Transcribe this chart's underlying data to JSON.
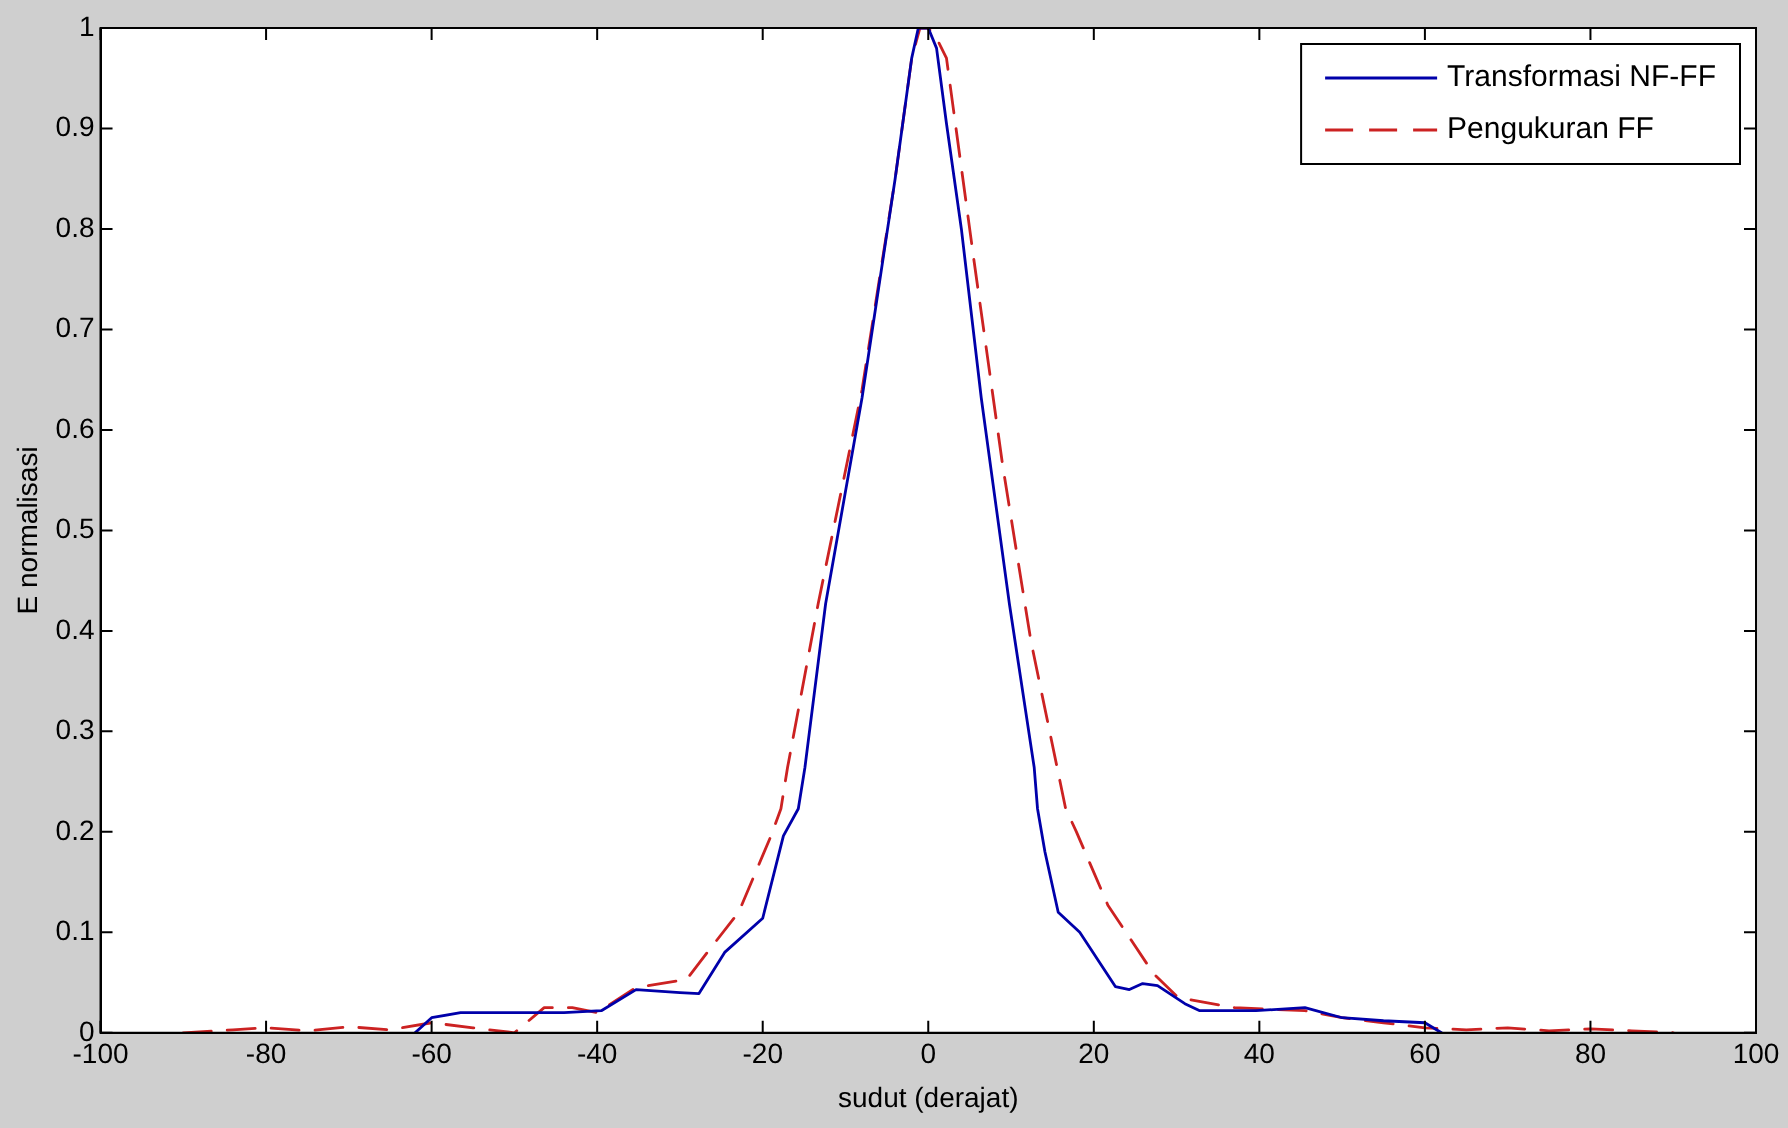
{
  "chart_data": {
    "type": "line",
    "xlabel": "sudut (derajat)",
    "ylabel": "E normalisasi",
    "xlim": [
      -100,
      100
    ],
    "xticks": [
      -100,
      -80,
      -60,
      -40,
      -20,
      0,
      20,
      40,
      60,
      80,
      100
    ],
    "ylim": [
      0,
      1
    ],
    "yticks": [
      0,
      0.1,
      0.2,
      0.3,
      0.4,
      0.5,
      0.6,
      0.7,
      0.8,
      0.9,
      1
    ],
    "grid": false,
    "legend": "top right",
    "marker": "none",
    "series": [
      {
        "name": "Transformasi NF-FF",
        "color": "#0000aa",
        "line_style": "solid",
        "x": [
          -62,
          -60,
          -56.5,
          -49.7,
          -44,
          -39.5,
          -35.3,
          -30,
          -27.7,
          -24.6,
          -20,
          -17.5,
          -15.7,
          -14.9,
          -12.4,
          -8,
          -4,
          -2,
          -1.2,
          0,
          1,
          2.2,
          4,
          6.4,
          9.8,
          12.8,
          13.2,
          14.1,
          15.7,
          18.3,
          22.6,
          24.3,
          25.9,
          27.7,
          31,
          32.8,
          39.6,
          45.5,
          50,
          55,
          60,
          62
        ],
        "values": [
          0,
          0.015,
          0.02,
          0.02,
          0.02,
          0.022,
          0.043,
          0.04,
          0.039,
          0.08,
          0.114,
          0.196,
          0.223,
          0.264,
          0.427,
          0.632,
          0.85,
          0.97,
          1,
          1,
          0.98,
          0.905,
          0.8,
          0.632,
          0.427,
          0.264,
          0.223,
          0.18,
          0.12,
          0.1,
          0.046,
          0.043,
          0.049,
          0.047,
          0.029,
          0.022,
          0.022,
          0.025,
          0.015,
          0.012,
          0.01,
          0
        ]
      },
      {
        "name": "Pengukuran FF",
        "color": "#cc2222",
        "line_style": "dashed",
        "x": [
          -90,
          -84,
          -80,
          -75,
          -70,
          -65,
          -60,
          -55,
          -50,
          -46.4,
          -43,
          -40,
          -35.3,
          -29.2,
          -26.7,
          -22.9,
          -19,
          -17.8,
          -17,
          -13.3,
          -8,
          -4,
          -2,
          -1,
          0,
          1,
          2.2,
          5.5,
          9,
          12.4,
          16.6,
          17.9,
          19.2,
          21.7,
          27.2,
          30.2,
          37,
          45.5,
          50,
          55,
          60,
          65,
          70,
          75,
          80,
          85,
          90
        ],
        "values": [
          0,
          0.003,
          0.005,
          0.002,
          0.006,
          0.003,
          0.01,
          0.005,
          0,
          0.025,
          0.025,
          0.02,
          0.045,
          0.053,
          0.08,
          0.12,
          0.196,
          0.223,
          0.264,
          0.427,
          0.64,
          0.85,
          0.97,
          1,
          1,
          0.99,
          0.97,
          0.77,
          0.564,
          0.39,
          0.223,
          0.2,
          0.175,
          0.127,
          0.059,
          0.035,
          0.025,
          0.022,
          0.015,
          0.01,
          0.005,
          0.003,
          0.005,
          0.002,
          0.004,
          0.002,
          0
        ]
      }
    ]
  }
}
